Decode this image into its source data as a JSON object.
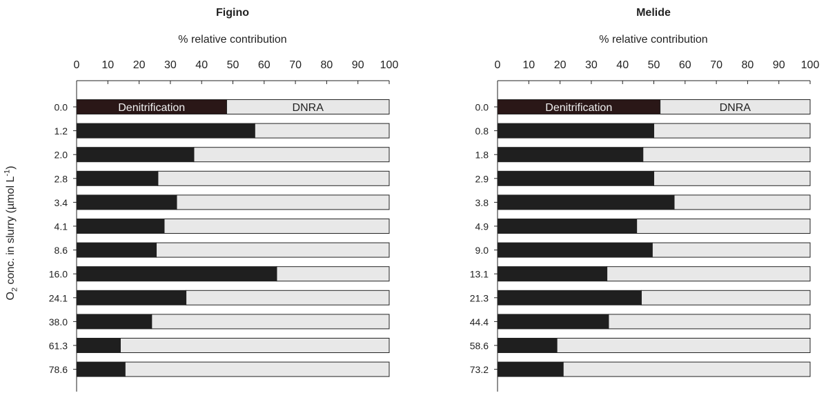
{
  "y_axis_label": {
    "main": "O",
    "sub": "2",
    "rest": " conc. in slurry (µmol L",
    "sup": "-1",
    "end": ")"
  },
  "colors": {
    "denitrification": "#1f1f1f",
    "first_row_denitrification": "#2a1717",
    "dnra": "#e8e8e8",
    "axis": "#222222"
  },
  "chart_data": [
    {
      "type": "bar",
      "orientation": "horizontal-stacked-100",
      "title": "Figino",
      "xlabel": "% relative contribution",
      "xlim": [
        0,
        100
      ],
      "xticks": [
        0,
        10,
        20,
        30,
        40,
        50,
        60,
        70,
        80,
        90,
        100
      ],
      "categories": [
        "0.0",
        "1.2",
        "2.0",
        "2.8",
        "3.4",
        "4.1",
        "8.6",
        "16.0",
        "24.1",
        "38.0",
        "61.3",
        "78.6"
      ],
      "series": [
        {
          "name": "Denitrification",
          "values": [
            48,
            57,
            37.5,
            26,
            32,
            28,
            25.5,
            64,
            35,
            24,
            14,
            15.5
          ]
        },
        {
          "name": "DNRA",
          "values": [
            52,
            43,
            62.5,
            74,
            68,
            72,
            74.5,
            36,
            65,
            76,
            86,
            84.5
          ]
        }
      ]
    },
    {
      "type": "bar",
      "orientation": "horizontal-stacked-100",
      "title": "Melide",
      "xlabel": "% relative contribution",
      "xlim": [
        0,
        100
      ],
      "xticks": [
        0,
        10,
        20,
        30,
        40,
        50,
        60,
        70,
        80,
        90,
        100
      ],
      "categories": [
        "0.0",
        "0.8",
        "1.8",
        "2.9",
        "3.8",
        "4.9",
        "9.0",
        "13.1",
        "21.3",
        "44.4",
        "58.6",
        "73.2"
      ],
      "series": [
        {
          "name": "Denitrification",
          "values": [
            52,
            50,
            46.5,
            50,
            56.5,
            44.5,
            49.5,
            35,
            46,
            35.5,
            19,
            21
          ]
        },
        {
          "name": "DNRA",
          "values": [
            48,
            50,
            53.5,
            50,
            43.5,
            55.5,
            50.5,
            65,
            54,
            64.5,
            81,
            79
          ]
        }
      ]
    }
  ]
}
